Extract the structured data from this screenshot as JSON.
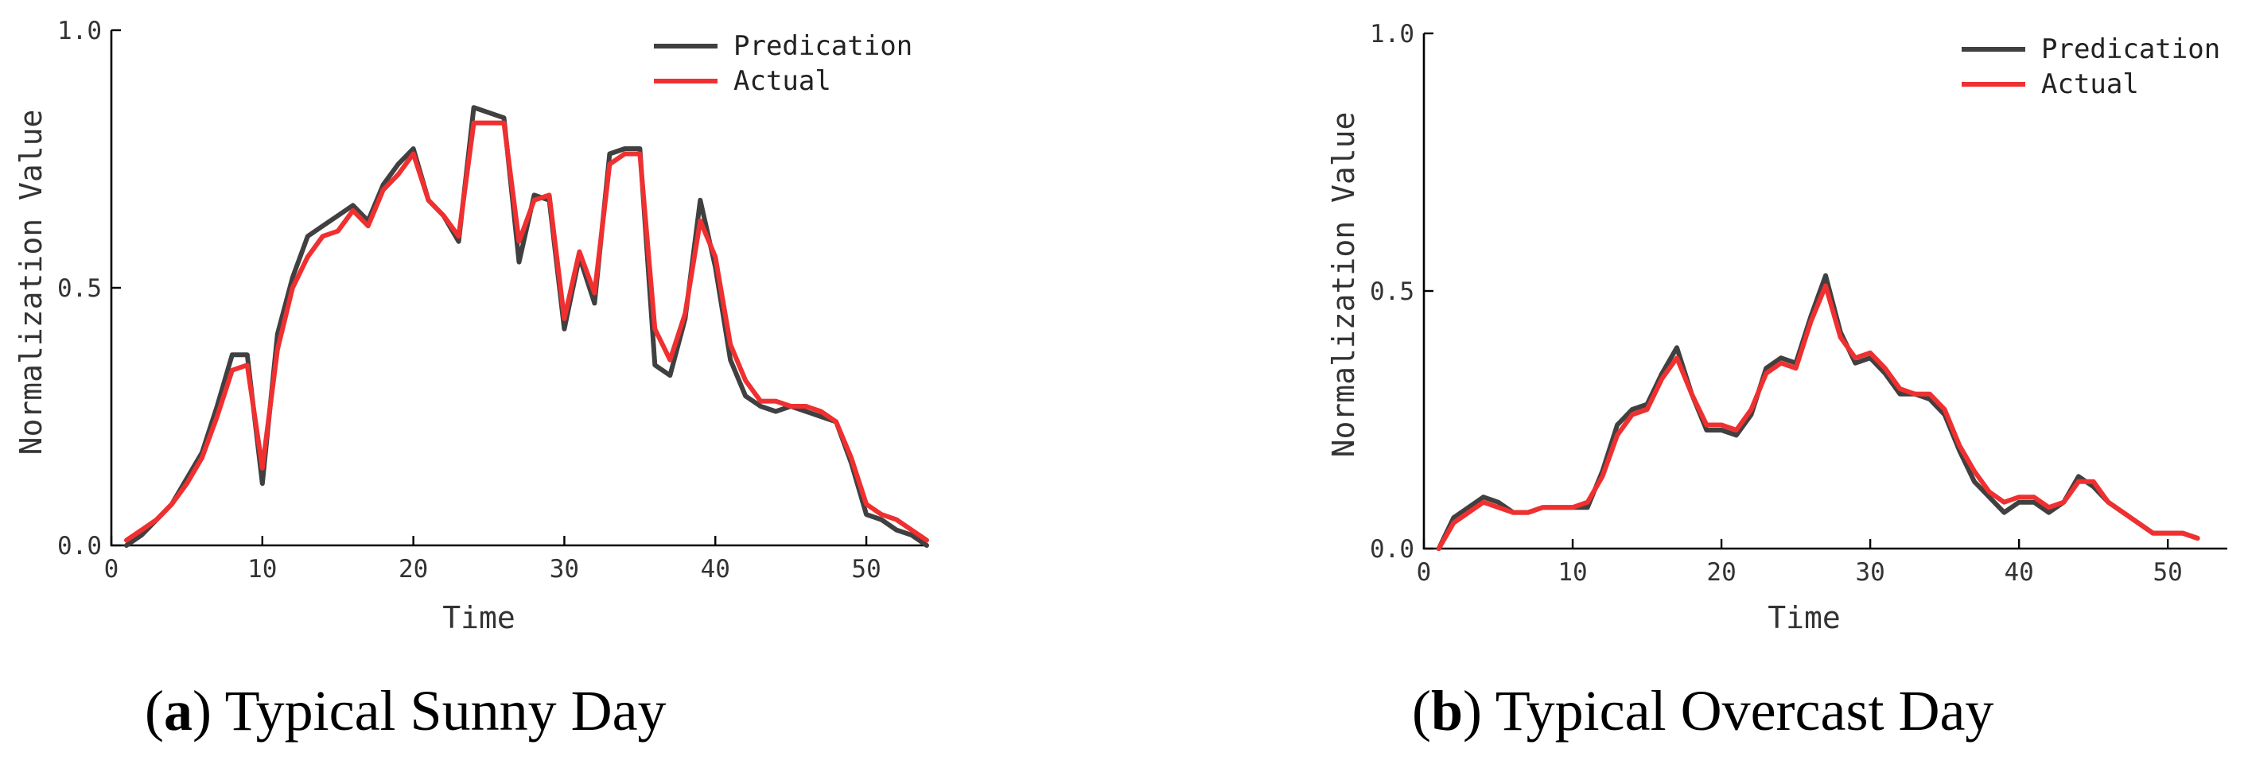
{
  "chart_data": [
    {
      "type": "line",
      "panel_letter": "a",
      "caption": "Typical Sunny Day",
      "xlabel": "Time",
      "ylabel": "Normalization Value",
      "xlim": [
        0,
        54
      ],
      "ylim": [
        0,
        1.0
      ],
      "xticks": [
        0,
        10,
        20,
        30,
        40,
        50
      ],
      "yticks": [
        0.0,
        0.5,
        1.0
      ],
      "ytick_labels": [
        "0.0",
        "0.5",
        "1.0"
      ],
      "legend_position": "top-right",
      "x": [
        1,
        2,
        3,
        4,
        5,
        6,
        7,
        8,
        9,
        10,
        11,
        12,
        13,
        14,
        15,
        16,
        17,
        18,
        19,
        20,
        21,
        22,
        23,
        24,
        25,
        26,
        27,
        28,
        29,
        30,
        31,
        32,
        33,
        34,
        35,
        36,
        37,
        38,
        39,
        40,
        41,
        42,
        43,
        44,
        45,
        46,
        47,
        48,
        49,
        50,
        51,
        52,
        53,
        54
      ],
      "series": [
        {
          "name": "Predication",
          "color": "#404040",
          "values": [
            0.0,
            0.02,
            0.05,
            0.08,
            0.13,
            0.18,
            0.27,
            0.37,
            0.37,
            0.12,
            0.41,
            0.52,
            0.6,
            0.62,
            0.64,
            0.66,
            0.63,
            0.7,
            0.74,
            0.77,
            0.67,
            0.64,
            0.59,
            0.85,
            0.84,
            0.83,
            0.55,
            0.68,
            0.67,
            0.42,
            0.56,
            0.47,
            0.76,
            0.77,
            0.77,
            0.35,
            0.33,
            0.44,
            0.67,
            0.54,
            0.36,
            0.29,
            0.27,
            0.26,
            0.27,
            0.26,
            0.25,
            0.24,
            0.16,
            0.06,
            0.05,
            0.03,
            0.02,
            0.0
          ]
        },
        {
          "name": "Actual",
          "color": "#f03030",
          "values": [
            0.01,
            0.03,
            0.05,
            0.08,
            0.12,
            0.17,
            0.25,
            0.34,
            0.35,
            0.15,
            0.38,
            0.5,
            0.56,
            0.6,
            0.61,
            0.65,
            0.62,
            0.69,
            0.72,
            0.76,
            0.67,
            0.64,
            0.6,
            0.82,
            0.82,
            0.82,
            0.59,
            0.67,
            0.68,
            0.44,
            0.57,
            0.49,
            0.74,
            0.76,
            0.76,
            0.42,
            0.36,
            0.45,
            0.63,
            0.56,
            0.39,
            0.32,
            0.28,
            0.28,
            0.27,
            0.27,
            0.26,
            0.24,
            0.17,
            0.08,
            0.06,
            0.05,
            0.03,
            0.01
          ]
        }
      ]
    },
    {
      "type": "line",
      "panel_letter": "b",
      "caption": "Typical Overcast Day",
      "xlabel": "Time",
      "ylabel": "Normalization Value",
      "xlim": [
        0,
        54
      ],
      "ylim": [
        0,
        1.0
      ],
      "xticks": [
        0,
        10,
        20,
        30,
        40,
        50
      ],
      "yticks": [
        0.0,
        0.5,
        1.0
      ],
      "ytick_labels": [
        "0.0",
        "0.5",
        "1.0"
      ],
      "legend_position": "top-right",
      "x": [
        1,
        2,
        3,
        4,
        5,
        6,
        7,
        8,
        9,
        10,
        11,
        12,
        13,
        14,
        15,
        16,
        17,
        18,
        19,
        20,
        21,
        22,
        23,
        24,
        25,
        26,
        27,
        28,
        29,
        30,
        31,
        32,
        33,
        34,
        35,
        36,
        37,
        38,
        39,
        40,
        41,
        42,
        43,
        44,
        45,
        46,
        47,
        48,
        49,
        50,
        51,
        52
      ],
      "series": [
        {
          "name": "Predication",
          "color": "#404040",
          "values": [
            0.0,
            0.06,
            0.08,
            0.1,
            0.09,
            0.07,
            0.07,
            0.08,
            0.08,
            0.08,
            0.08,
            0.15,
            0.24,
            0.27,
            0.28,
            0.34,
            0.39,
            0.3,
            0.23,
            0.23,
            0.22,
            0.26,
            0.35,
            0.37,
            0.36,
            0.45,
            0.53,
            0.42,
            0.36,
            0.37,
            0.34,
            0.3,
            0.3,
            0.29,
            0.26,
            0.19,
            0.13,
            0.1,
            0.07,
            0.09,
            0.09,
            0.07,
            0.09,
            0.14,
            0.12,
            0.09,
            0.07,
            0.05,
            0.03,
            0.03,
            0.03,
            0.02
          ]
        },
        {
          "name": "Actual",
          "color": "#f03030",
          "values": [
            0.0,
            0.05,
            0.07,
            0.09,
            0.08,
            0.07,
            0.07,
            0.08,
            0.08,
            0.08,
            0.09,
            0.14,
            0.22,
            0.26,
            0.27,
            0.33,
            0.37,
            0.3,
            0.24,
            0.24,
            0.23,
            0.27,
            0.34,
            0.36,
            0.35,
            0.44,
            0.51,
            0.41,
            0.37,
            0.38,
            0.35,
            0.31,
            0.3,
            0.3,
            0.27,
            0.2,
            0.15,
            0.11,
            0.09,
            0.1,
            0.1,
            0.08,
            0.09,
            0.13,
            0.13,
            0.09,
            0.07,
            0.05,
            0.03,
            0.03,
            0.03,
            0.02
          ]
        }
      ]
    }
  ]
}
